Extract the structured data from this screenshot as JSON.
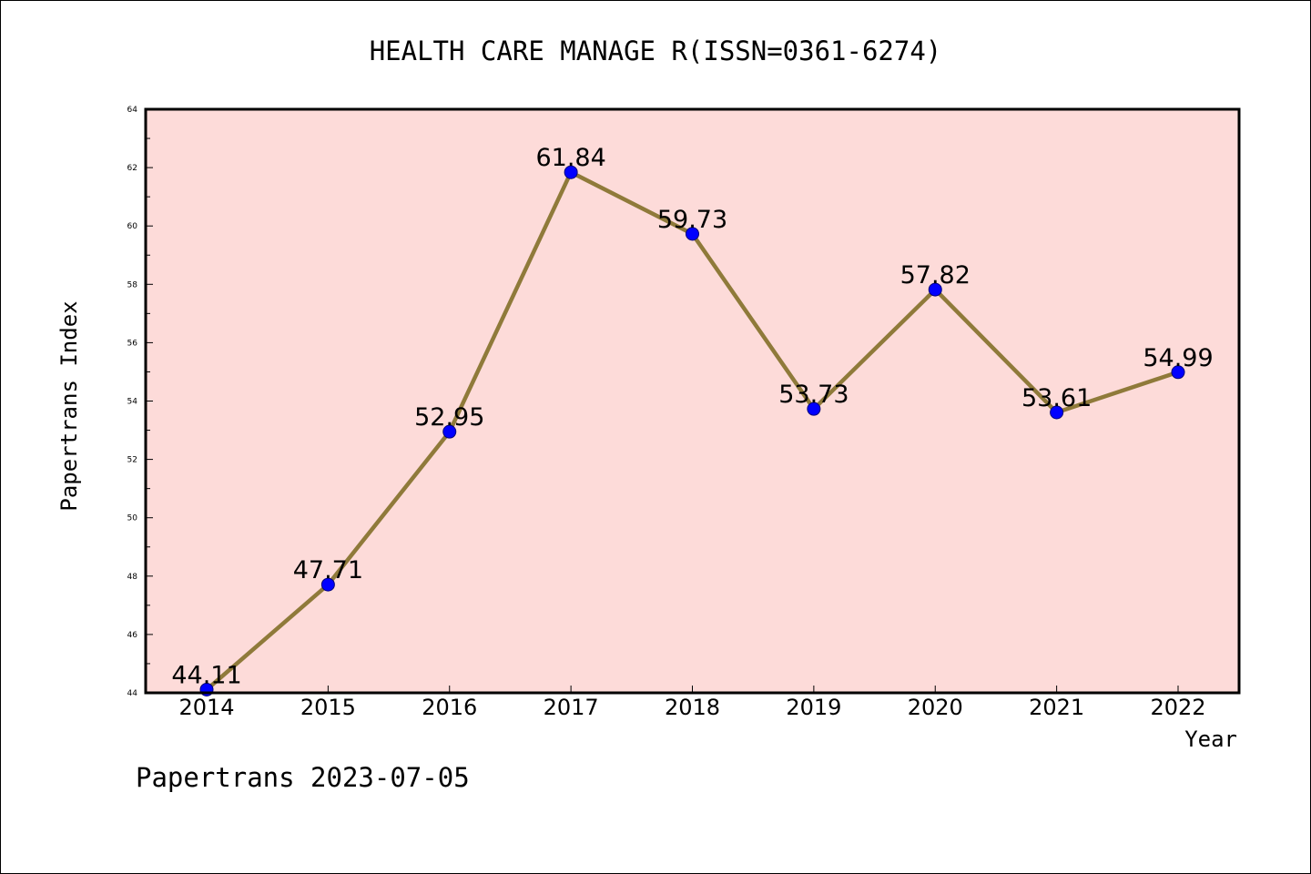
{
  "chart_data": {
    "type": "line",
    "title": "HEALTH CARE MANAGE R(ISSN=0361-6274)",
    "xlabel": "Year",
    "ylabel": "Papertrans Index",
    "categories": [
      "2014",
      "2015",
      "2016",
      "2017",
      "2018",
      "2019",
      "2020",
      "2021",
      "2022"
    ],
    "values": [
      44.11,
      47.71,
      52.95,
      61.84,
      59.73,
      53.73,
      57.82,
      53.61,
      54.99
    ],
    "data_labels": [
      "44.11",
      "47.71",
      "52.95",
      "61.84",
      "59.73",
      "53.73",
      "57.82",
      "53.61",
      "54.99"
    ],
    "ylim": [
      44,
      64
    ],
    "yticks": [
      "44",
      "46",
      "48",
      "50",
      "52",
      "54",
      "56",
      "58",
      "60",
      "62",
      "64"
    ],
    "grid": false,
    "legend": "none",
    "colors": {
      "plot_background": "#fddbd9",
      "line": "#8f7a3a",
      "marker": "#0000ff"
    }
  },
  "footer": {
    "text": "Papertrans 2023-07-05"
  }
}
